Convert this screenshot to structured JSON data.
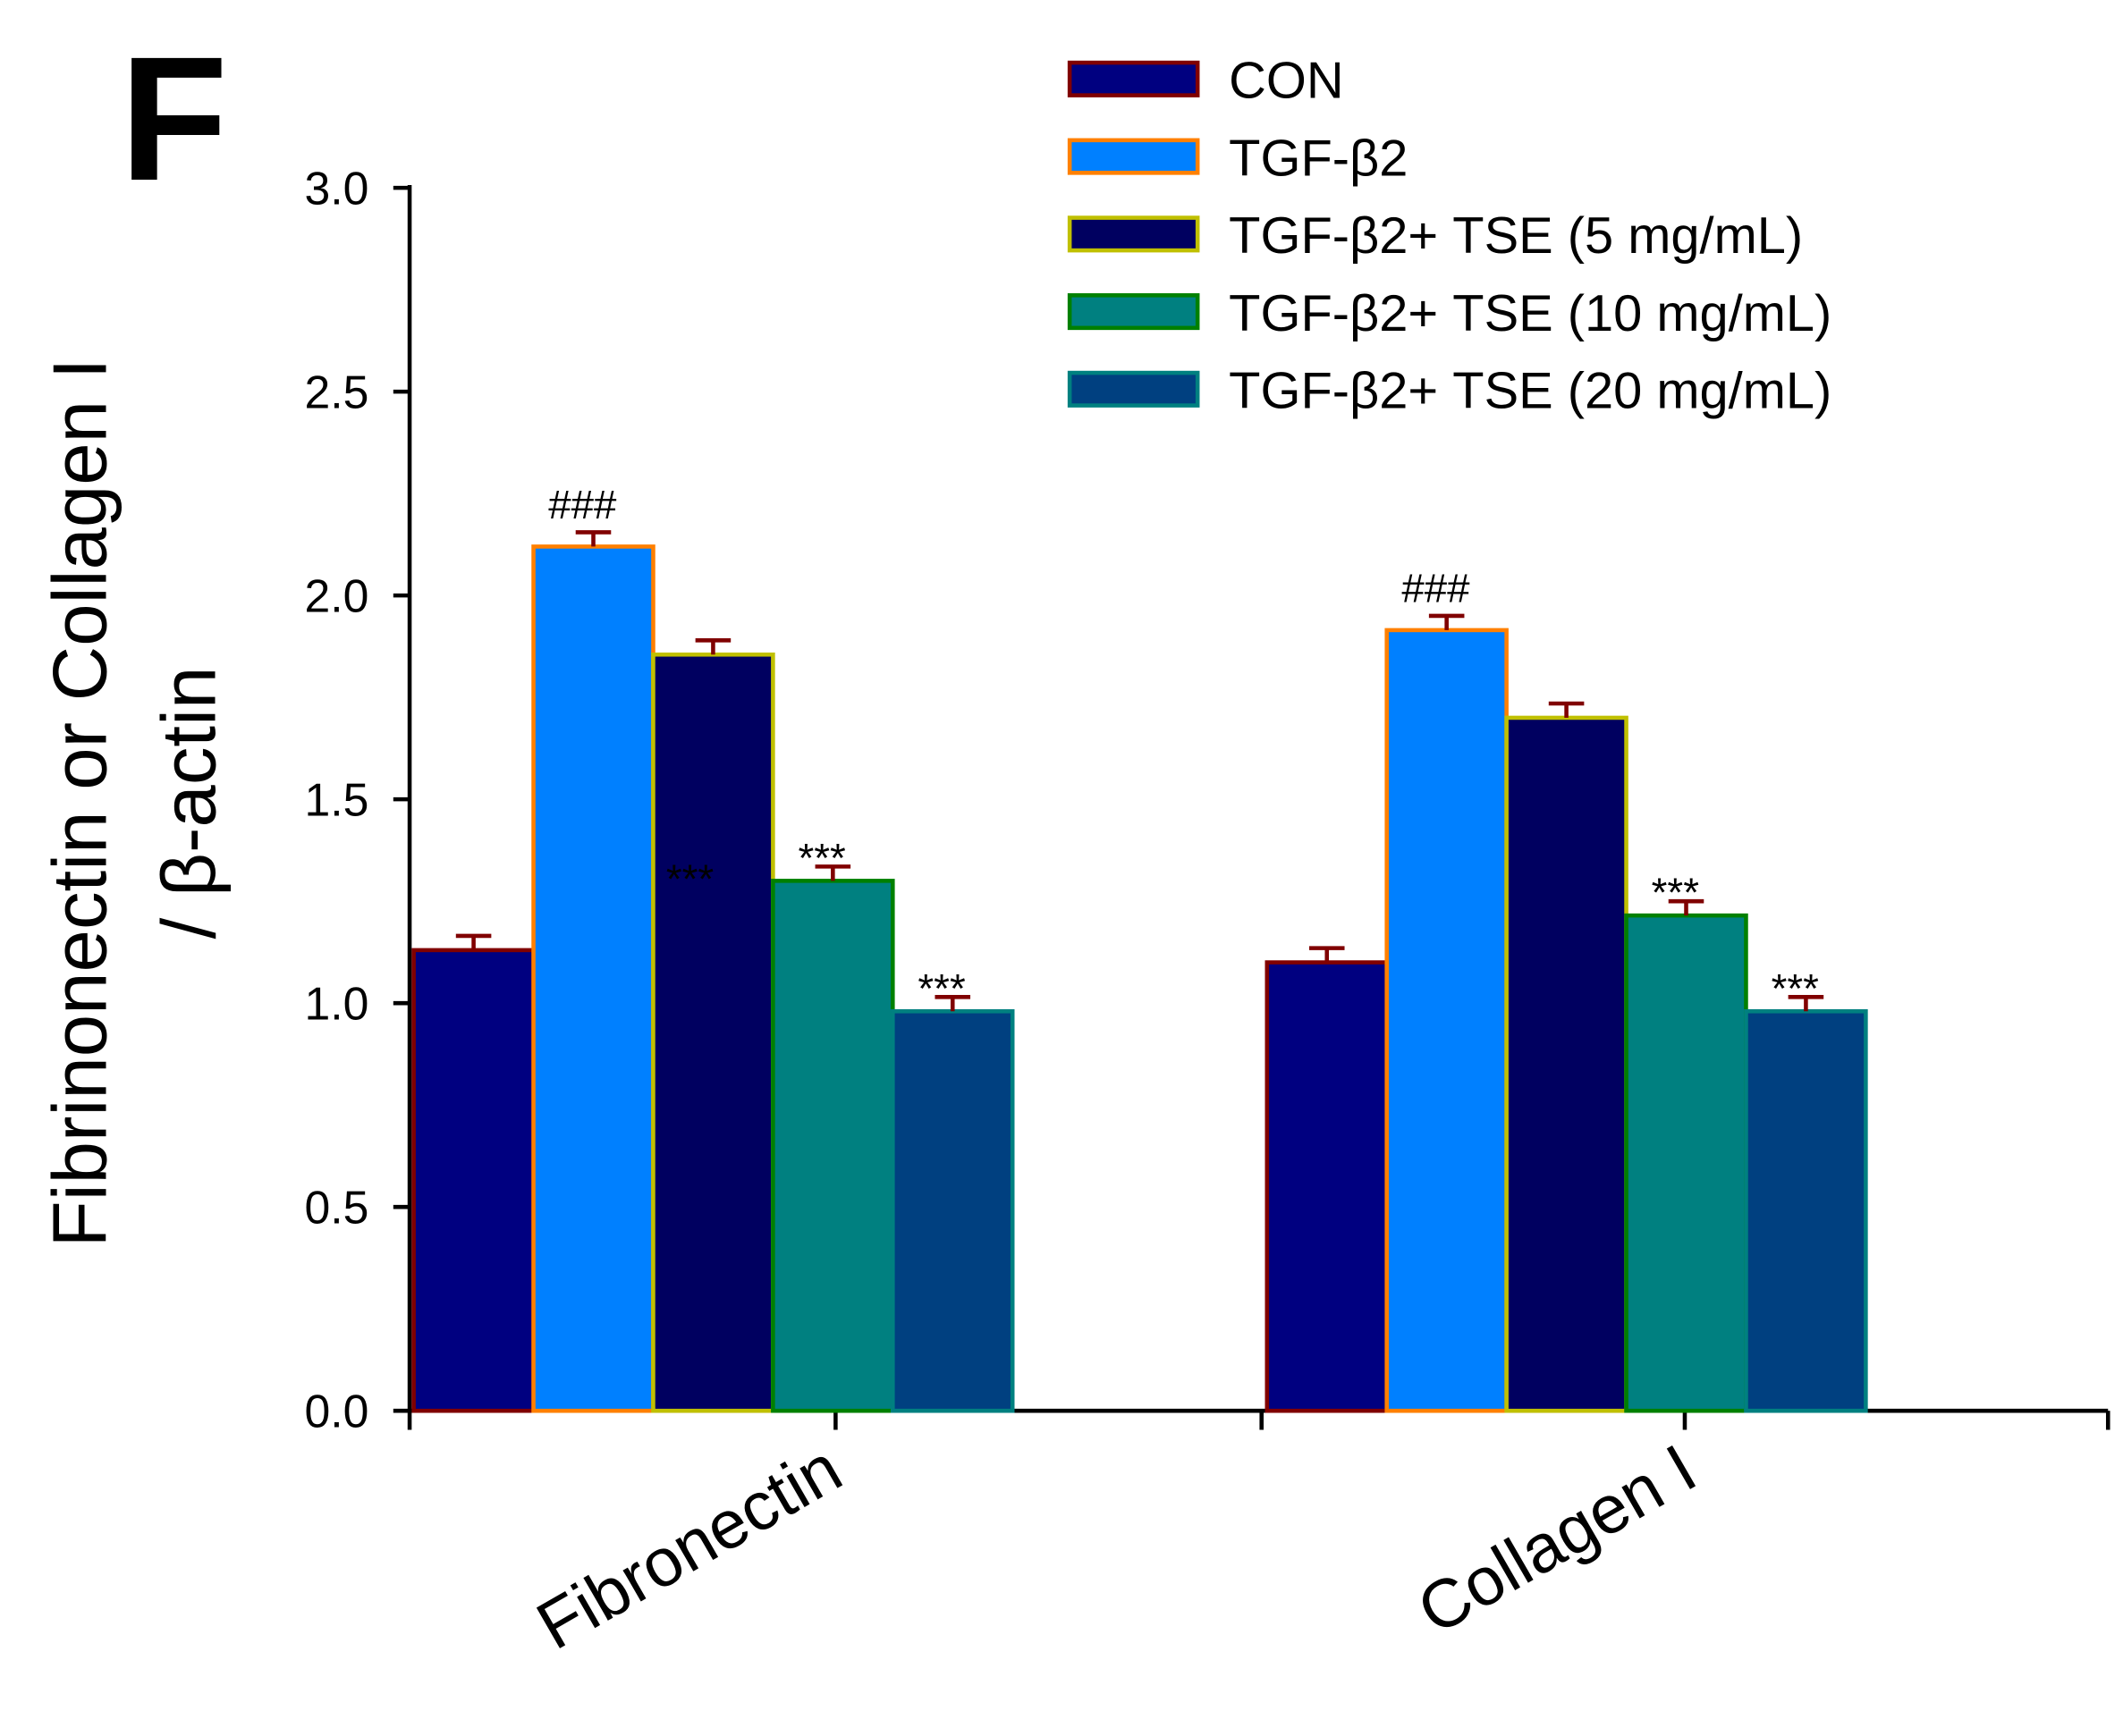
{
  "panel_label": "F",
  "chart_data": {
    "type": "bar",
    "title": "",
    "xlabel": "",
    "ylabel_line1": "Fibrinonectin or Collagen I",
    "ylabel_line2": "/ β-actin",
    "ylim": [
      0,
      3.0
    ],
    "yticks": [
      "0.0",
      "0.5",
      "1.0",
      "1.5",
      "2.0",
      "2.5",
      "3.0"
    ],
    "ytick_values": [
      0,
      0.5,
      1.0,
      1.5,
      2.0,
      2.5,
      3.0
    ],
    "categories": [
      "Fibronectin",
      "Collagen I"
    ],
    "legend_position": "top-right",
    "series": [
      {
        "name": "CON",
        "values": [
          1.13,
          1.1
        ],
        "errors": [
          0.035,
          0.035
        ],
        "fill": "#000080",
        "stroke": "#800000",
        "annotations": [
          "",
          ""
        ]
      },
      {
        "name": "TGF-β2",
        "values": [
          2.12,
          1.915
        ],
        "errors": [
          0.035,
          0.035
        ],
        "fill": "#0080ff",
        "stroke": "#ff8000",
        "annotations": [
          "###",
          "###"
        ]
      },
      {
        "name": "TGF-β2+ TSE (5 mg/mL)",
        "values": [
          1.855,
          1.7
        ],
        "errors": [
          0.035,
          0.035
        ],
        "fill": "#000060",
        "stroke": "#c0c000",
        "annotations": [
          "***",
          ""
        ]
      },
      {
        "name": "TGF-β2+ TSE (10 mg/mL)",
        "values": [
          1.3,
          1.215
        ],
        "errors": [
          0.035,
          0.035
        ],
        "fill": "#008080",
        "stroke": "#008000",
        "annotations": [
          "***",
          "***"
        ]
      },
      {
        "name": "TGF-β2+ TSE (20 mg/mL)",
        "values": [
          0.98,
          0.98
        ],
        "errors": [
          0.035,
          0.035
        ],
        "fill": "#004080",
        "stroke": "#008080",
        "annotations": [
          "***",
          "***"
        ]
      }
    ],
    "error_bar_color": "#800000"
  }
}
